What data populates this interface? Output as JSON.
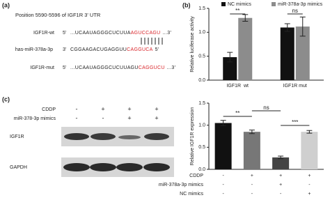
{
  "panel_labels": [
    "(a)",
    "(b)",
    "(c)"
  ],
  "sequence": {
    "title": "Position 5590-5596 of IGF1R 3' UTR",
    "rows": [
      {
        "label": "IGF1R-wt",
        "prefix": "5'",
        "black": "...UCAAUAGGGCUCUUA",
        "red": "AGUCCAGU",
        "suffix": "...3'"
      },
      {
        "label": "has-miR-378a-3p",
        "prefix": "3'",
        "black": "CGGAAGACUGAGGUU",
        "red": "CAGGUCA",
        "suffix": "5'"
      },
      {
        "label": "IGF1R-mut",
        "prefix": "5'",
        "black": "...UCAAUAGGGCUCUUAGU",
        "red": "CAGGUCU",
        "suffix": "...3'"
      }
    ]
  },
  "blot": {
    "condition_rows": [
      {
        "label": "CDDP",
        "signs": [
          "-",
          "+",
          "+",
          "+"
        ]
      },
      {
        "label": "miR-378-3p mimics",
        "signs": [
          "-",
          "-",
          "+",
          "+"
        ]
      }
    ],
    "bands": [
      "IGF1R",
      "GAPDH"
    ]
  },
  "chart_data": [
    {
      "type": "grouped_bar",
      "y_label": "Relative luciferase activity",
      "categories": [
        "IGF1R  wt",
        "IGF1R mut"
      ],
      "series": [
        {
          "name": "NC mimics",
          "color": "#111111",
          "values": [
            0.48,
            1.1
          ],
          "errors": [
            0.1,
            0.08
          ]
        },
        {
          "name": "miR-378a-3p mimics",
          "color": "#8c8c8c",
          "values": [
            1.3,
            1.12
          ],
          "errors": [
            0.07,
            0.2
          ]
        }
      ],
      "ylim": [
        0,
        1.5
      ],
      "yticks": [
        {
          "value": 0,
          "label": "0.0"
        },
        {
          "value": 0.5,
          "label": "0.5"
        },
        {
          "value": 1,
          "label": "1.0"
        },
        {
          "value": 1.5,
          "label": "1.5"
        }
      ],
      "annotations": [
        "**",
        "ns"
      ]
    },
    {
      "type": "bar",
      "y_label": "Relative IGF1R expression",
      "values": [
        1.05,
        0.85,
        0.27,
        0.85
      ],
      "errors": [
        0.06,
        0.04,
        0.03,
        0.03
      ],
      "colors": [
        "#111111",
        "#777777",
        "#444444",
        "#cfcfcf"
      ],
      "ylim": [
        0,
        1.5
      ],
      "yticks": [
        {
          "value": 0,
          "label": "0.0"
        },
        {
          "value": 0.5,
          "label": "0.5"
        },
        {
          "value": 1,
          "label": "1.0"
        },
        {
          "value": 1.5,
          "label": "1.5"
        }
      ],
      "conditions": [
        {
          "label": "CDDP",
          "signs": [
            "-",
            "+",
            "+",
            "+"
          ]
        },
        {
          "label": "miR-378a-3p mimics",
          "signs": [
            "-",
            "-",
            "+",
            "-"
          ]
        },
        {
          "label": "NC mimics",
          "signs": [
            "-",
            "-",
            "-",
            "+"
          ]
        }
      ],
      "annotations": [
        "**",
        "ns",
        "***"
      ]
    }
  ]
}
